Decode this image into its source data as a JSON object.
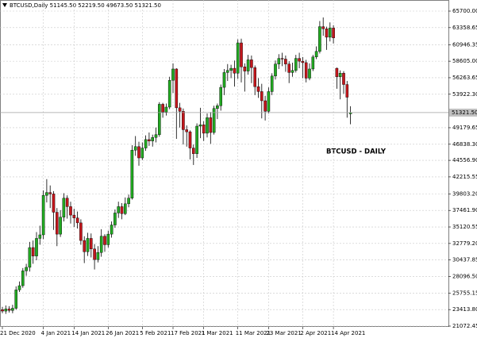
{
  "chart_data": {
    "type": "candlestick",
    "header": "BTCUSD,Daily  51145.50 52219.50 49673.50 51321.50",
    "annotation": "BTCUSD - DAILY",
    "up_color": "#22a822",
    "down_color": "#c4161c",
    "grid": true,
    "ylim": [
      20960,
      67274
    ],
    "yticks": [
      {
        "value": 65700,
        "label": "65700.00"
      },
      {
        "value": 63358.65,
        "label": "63358.65"
      },
      {
        "value": 60946.35,
        "label": "60946.35"
      },
      {
        "value": 58605,
        "label": "58605.00"
      },
      {
        "value": 56263.65,
        "label": "56263.65"
      },
      {
        "value": 53922.3,
        "label": "53922.30"
      },
      {
        "value": 49179.65,
        "label": "49179.65"
      },
      {
        "value": 46838.3,
        "label": "46838.30"
      },
      {
        "value": 44556.9,
        "label": "44556.90"
      },
      {
        "value": 42215.55,
        "label": "42215.55"
      },
      {
        "value": 39803.2,
        "label": "39803.20"
      },
      {
        "value": 37461.9,
        "label": "37461.90"
      },
      {
        "value": 35120.55,
        "label": "35120.55"
      },
      {
        "value": 32779.2,
        "label": "32779.20"
      },
      {
        "value": 30437.85,
        "label": "30437.85"
      },
      {
        "value": 28096.5,
        "label": "28096.50"
      },
      {
        "value": 25755.15,
        "label": "25755.15"
      },
      {
        "value": 23413.8,
        "label": "23413.80"
      },
      {
        "value": 21072.45,
        "label": "21072.45"
      }
    ],
    "current_price": {
      "value": 51321.5,
      "label": "51321.50"
    },
    "categories": [
      "21 Dec 2020",
      null,
      null,
      null,
      null,
      null,
      null,
      null,
      null,
      null,
      null,
      null,
      "4 Jan 2021",
      null,
      null,
      null,
      null,
      null,
      null,
      null,
      null,
      "14 Jan 2021",
      null,
      null,
      null,
      null,
      null,
      null,
      null,
      null,
      null,
      "26 Jan 2021",
      null,
      null,
      null,
      null,
      null,
      null,
      null,
      null,
      null,
      "5 Feb 2021",
      null,
      null,
      null,
      null,
      null,
      null,
      null,
      null,
      "17 Feb 2021",
      null,
      null,
      null,
      null,
      null,
      null,
      null,
      null,
      "1 Mar 2021",
      null,
      null,
      null,
      null,
      null,
      null,
      null,
      null,
      null,
      "11 Mar 2021",
      null,
      null,
      null,
      null,
      null,
      null,
      null,
      null,
      "23 Mar 2021",
      null,
      null,
      null,
      null,
      null,
      null,
      null,
      null,
      null,
      "2 Apr 2021",
      null,
      null,
      null,
      null,
      null,
      null,
      null,
      null,
      "14 Apr 2021",
      null,
      null,
      null,
      null,
      null
    ],
    "open": [
      23400,
      23200,
      23500,
      23300,
      23600,
      26200,
      26800,
      28900,
      29400,
      32200,
      31000,
      33500,
      34000,
      39600,
      40000,
      39800,
      37200,
      34100,
      36500,
      39200,
      38000,
      36800,
      36400,
      35700,
      33200,
      31600,
      33500,
      32000,
      30500,
      31500,
      33800,
      32600,
      34100,
      35400,
      37100,
      38000,
      37000,
      38400,
      39200,
      46000,
      46500,
      44900,
      46300,
      47500,
      47300,
      47800,
      48200,
      52500,
      51400,
      52100,
      55900,
      57500,
      52000,
      51500,
      48900,
      48600,
      46300,
      45500,
      49400,
      49600,
      48400,
      50600,
      48500,
      51900,
      52300,
      54900,
      57000,
      57300,
      57600,
      56900,
      61200,
      57800,
      57200,
      58800,
      57700,
      55000,
      54300,
      53000,
      51500,
      54300,
      56500,
      58200,
      59000,
      58900,
      58200,
      57000,
      57300,
      59000,
      58600,
      58400,
      56200,
      57500,
      59200,
      60000,
      63500,
      63200,
      62000,
      63300,
      57600,
      56400,
      56900,
      55300,
      51145.5
    ],
    "high": [
      23800,
      24000,
      23900,
      24100,
      26700,
      27400,
      29300,
      29900,
      33000,
      33200,
      34400,
      35300,
      40300,
      41900,
      41000,
      40200,
      37800,
      37500,
      39900,
      39600,
      38700,
      37700,
      37300,
      36200,
      33800,
      34300,
      34200,
      32700,
      32400,
      34800,
      34100,
      34600,
      35900,
      37600,
      38700,
      38500,
      39300,
      39700,
      46700,
      48000,
      47200,
      47100,
      48100,
      48500,
      48200,
      49200,
      52800,
      52700,
      52600,
      56400,
      58300,
      57600,
      52700,
      51900,
      49500,
      48800,
      46800,
      49800,
      52000,
      50100,
      51200,
      51400,
      52300,
      52600,
      55300,
      57500,
      58200,
      58100,
      58700,
      61700,
      61800,
      58300,
      59500,
      59400,
      58000,
      56200,
      55400,
      53700,
      54900,
      56900,
      58700,
      59600,
      59800,
      59400,
      58600,
      58400,
      59500,
      59800,
      59200,
      58800,
      58300,
      59500,
      60700,
      64300,
      64800,
      63500,
      64100,
      63700,
      57700,
      57300,
      57200,
      55800,
      52219.5
    ],
    "low": [
      22900,
      22800,
      23000,
      22900,
      23400,
      25900,
      26500,
      28200,
      28800,
      29900,
      30400,
      32600,
      33400,
      38600,
      37800,
      34700,
      32400,
      33700,
      35900,
      36300,
      35600,
      35100,
      34900,
      32600,
      30000,
      31000,
      30800,
      29100,
      30100,
      30900,
      31600,
      32200,
      33600,
      35000,
      36400,
      36200,
      36800,
      37900,
      39000,
      45200,
      43800,
      44600,
      45900,
      46600,
      46500,
      47100,
      47900,
      50600,
      50900,
      51800,
      54100,
      47600,
      49200,
      46800,
      46500,
      44700,
      43900,
      44900,
      47700,
      47300,
      47800,
      46900,
      48200,
      50400,
      51600,
      53800,
      55800,
      56200,
      55000,
      56100,
      55600,
      54300,
      56700,
      55500,
      53800,
      53400,
      50500,
      50200,
      51200,
      53800,
      56000,
      57500,
      57900,
      57100,
      55500,
      56400,
      57000,
      57600,
      56200,
      55600,
      55900,
      57200,
      58900,
      59700,
      62200,
      60200,
      61400,
      61100,
      54700,
      53200,
      54000,
      50600,
      49673.5
    ],
    "close": [
      23200,
      23500,
      23300,
      23600,
      26200,
      26800,
      28900,
      29400,
      32200,
      31000,
      33500,
      34000,
      39600,
      40000,
      39800,
      37200,
      34100,
      36500,
      39200,
      38000,
      36800,
      36400,
      35700,
      33200,
      31600,
      33500,
      32000,
      30500,
      31500,
      33800,
      32600,
      34100,
      35400,
      37100,
      38000,
      37000,
      38400,
      39200,
      46000,
      46500,
      44900,
      46300,
      47500,
      47300,
      47800,
      48200,
      52500,
      51400,
      52100,
      55900,
      57500,
      52000,
      51500,
      48900,
      48600,
      46300,
      45500,
      49400,
      49600,
      48400,
      50600,
      48500,
      51900,
      52300,
      54900,
      57000,
      57300,
      57600,
      56900,
      61200,
      57800,
      57200,
      58800,
      57700,
      55000,
      54300,
      53000,
      51500,
      54300,
      56500,
      58200,
      59000,
      58900,
      58200,
      57000,
      57300,
      59000,
      58600,
      58400,
      56200,
      57500,
      59200,
      60000,
      63500,
      63200,
      62000,
      63300,
      61900,
      56400,
      56900,
      55300,
      53500,
      51321.5
    ]
  }
}
